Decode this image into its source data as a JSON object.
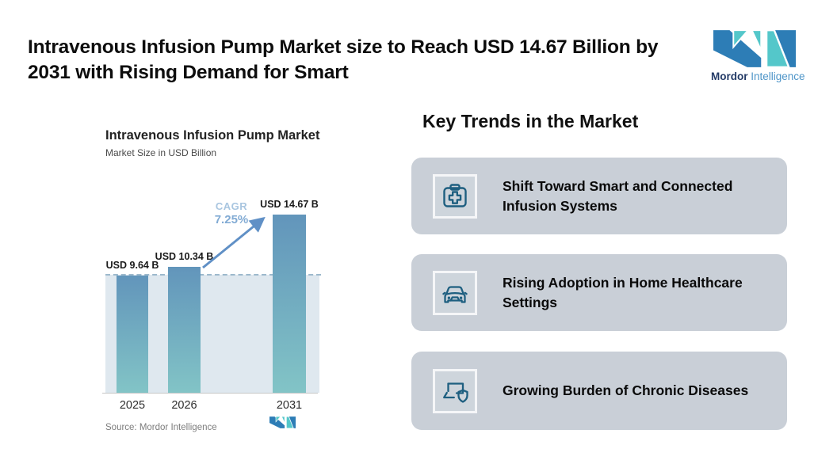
{
  "header": {
    "title_lines": [
      "Intravenous Infusion Pump Market size to Reach USD 14.67 Billion by",
      "2031 with Rising Demand for Smart"
    ]
  },
  "brand": {
    "name_bold": "Mordor",
    "name_light": "Intelligence",
    "logo_icon": "mordor-intelligence-m-mark"
  },
  "chart_data": {
    "type": "bar",
    "title": "Intravenous Infusion Pump Market",
    "subtitle": "Market Size in USD Billion",
    "categories": [
      "2025",
      "2026",
      "2031"
    ],
    "values": [
      9.64,
      10.34,
      14.67
    ],
    "value_labels": [
      "USD 9.64 B",
      "USD 10.34 B",
      "USD 14.67 B"
    ],
    "unit": "USD Billion",
    "cagr_label": "CAGR",
    "cagr_value": "7.25%",
    "annotations": [
      "growth arrow from 2026 bar to 2031 bar",
      "dashed reference line at 2025 level"
    ],
    "reference_line_value": 9.64,
    "ylim": [
      0,
      16
    ],
    "grid": false,
    "legend": false,
    "source": "Source: Mordor Intelligence"
  },
  "trends": {
    "heading": "Key Trends in the Market",
    "cards": [
      {
        "icon": "first-aid-kit-icon",
        "text": "Shift Toward Smart and Connected Infusion Systems"
      },
      {
        "icon": "car-icon",
        "text": "Rising Adoption in Home Healthcare Settings"
      },
      {
        "icon": "laptop-shield-icon",
        "text": "Growing Burden of Chronic Diseases"
      }
    ]
  },
  "colors": {
    "brand_blue": "#2d7db6",
    "brand_teal": "#54c7ca",
    "brand_navy_text": "#233a66",
    "brand_light_blue_text": "#4e95c8",
    "icon_stroke": "#1e5f80",
    "card_bg": "#c9cfd7",
    "bar_top": "#6295bb",
    "bar_bottom": "#82c4c6",
    "plot_fill": "#dfe8ef",
    "dashed_line": "#9db9cc",
    "arrow": "#6090c6",
    "cagr_label": "#a9c6e0",
    "cagr_value": "#82abd4"
  }
}
